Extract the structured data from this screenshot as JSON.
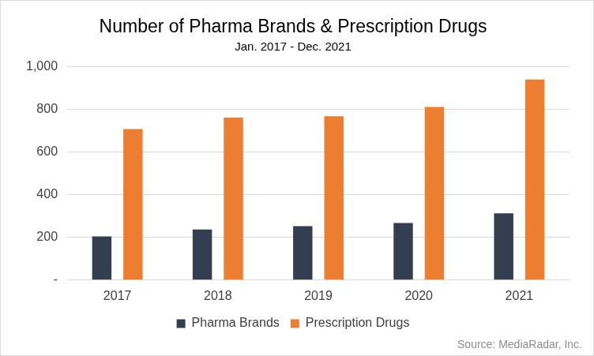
{
  "chart_data": {
    "type": "bar",
    "title": "Number of Pharma Brands & Prescription Drugs",
    "subtitle": "Jan. 2017 - Dec. 2021",
    "categories": [
      "2017",
      "2018",
      "2019",
      "2020",
      "2021"
    ],
    "series": [
      {
        "name": "Pharma Brands",
        "color": "#333f50",
        "values": [
          205,
          237,
          253,
          268,
          313
        ]
      },
      {
        "name": "Prescription Drugs",
        "color": "#ed7d31",
        "values": [
          708,
          762,
          768,
          812,
          940
        ]
      }
    ],
    "ylim": [
      0,
      1000
    ],
    "yticks": [
      {
        "value": 0,
        "label": "-"
      },
      200,
      400,
      600,
      800,
      {
        "value": 1000,
        "label": "1,000"
      }
    ],
    "grid": true,
    "legend": "bottom",
    "annotations": [
      "Source: MediaRadar, Inc."
    ]
  }
}
